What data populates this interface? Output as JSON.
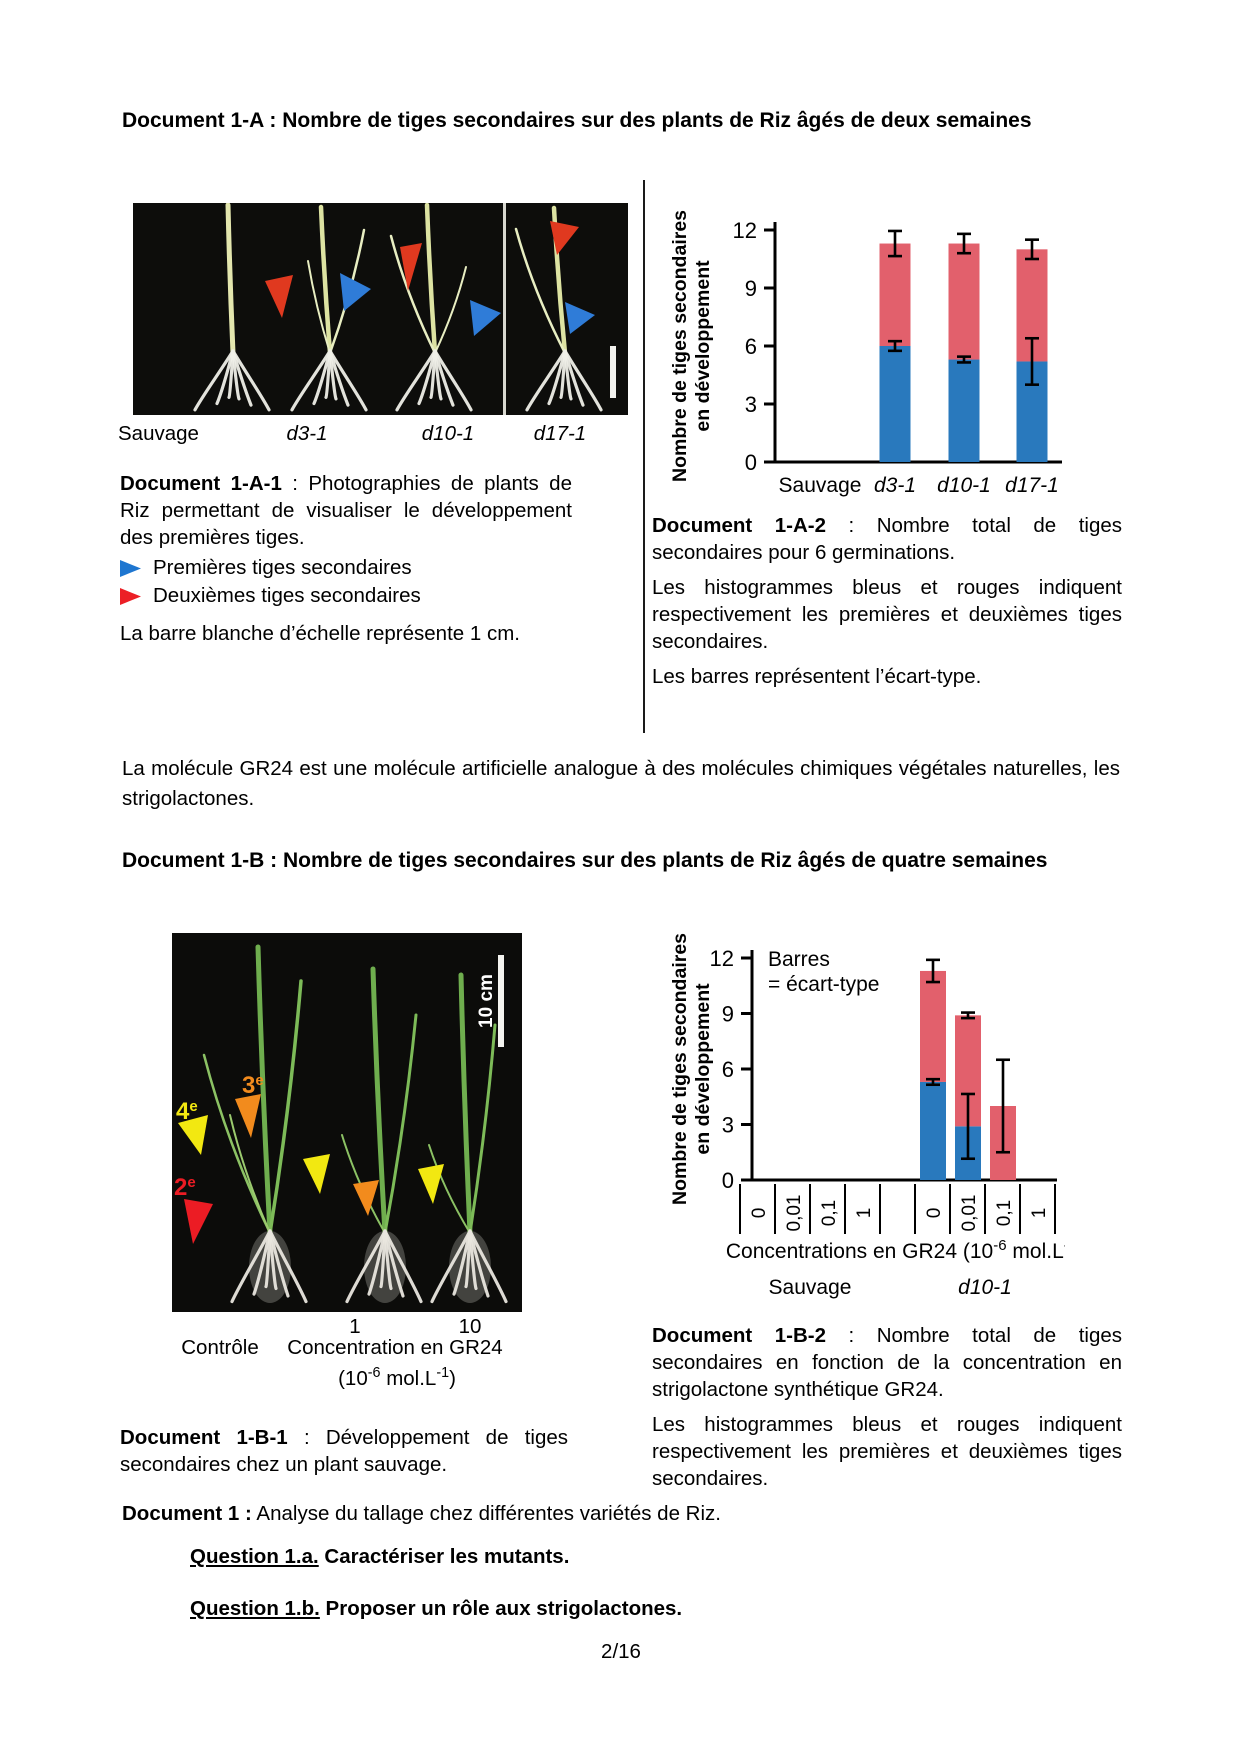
{
  "page": {
    "footer": "2/16"
  },
  "section_a": {
    "title": "Document 1-A : Nombre de tiges secondaires sur des plants de Riz âgés de deux semaines",
    "photo": {
      "labels": [
        "Sauvage",
        "d3-1",
        "d10-1",
        "d17-1"
      ],
      "arrow_colors": {
        "first_blue": "#2F7CD8",
        "second_red": "#E0391F"
      }
    },
    "caption1": {
      "bold": "Document 1-A-1",
      "text": " : Photographies de plants de Riz permettant de visualiser le développement des premières tiges."
    },
    "legend": [
      {
        "color": "#1E76D0",
        "label": "Premières tiges secondaires"
      },
      {
        "color": "#EC1F26",
        "label": "Deuxièmes tiges secondaires"
      }
    ],
    "scale_note": "La barre blanche d’échelle représente 1 cm.",
    "caption2": {
      "bold": "Document 1-A-2",
      "text": " : Nombre total de tiges secondaires pour 6 germinations.",
      "para2": "Les histogrammes bleus et rouges indiquent respectivement les premières et deuxièmes tiges secondaires.",
      "para3": "Les barres représentent l’écart-type."
    }
  },
  "between_paragraph": "La molécule GR24 est une molécule artificielle analogue à des molécules chimiques végétales naturelles, les strigolactones.",
  "section_b": {
    "title": "Document 1-B : Nombre de tiges secondaires sur des plants de Riz âgés de quatre semaines",
    "photo": {
      "arrow_labels": [
        {
          "num": "4",
          "sup": "e",
          "color": "#F2E811"
        },
        {
          "num": "3",
          "sup": "e",
          "color": "#F28B1D"
        },
        {
          "num": "2",
          "sup": "e",
          "color": "#EC1C24"
        }
      ],
      "scale_label": "10 cm",
      "tick_left": "1",
      "tick_right": "10",
      "caption_control": "Contrôle",
      "caption_conc": "Concentration en GR24",
      "unit_parts": [
        "(10",
        "-6",
        " mol.L",
        "-1",
        ")"
      ]
    },
    "caption1": {
      "bold": "Document 1-B-1",
      "text": " : Développement de tiges secondaires chez un plant sauvage."
    },
    "caption2": {
      "bold": "Document 1-B-2",
      "text": " : Nombre total de tiges secondaires en fonction de la concentration en strigolactone synthétique GR24.",
      "para2": "Les histogrammes bleus et rouges indiquent respectivement les premières et deuxièmes tiges secondaires."
    }
  },
  "doc1_line": {
    "bold": "Document 1 :",
    "text": " Analyse du tallage chez différentes variétés de Riz."
  },
  "questions": [
    {
      "label": "Question 1.a.",
      "text": " Caractériser les mutants."
    },
    {
      "label": "Question 1.b.",
      "text": " Proposer un rôle aux strigolactones."
    }
  ],
  "chart_data": [
    {
      "type": "bar",
      "stacked": true,
      "ylabel_lines": [
        "Nombre de tiges secondaires",
        "en développement"
      ],
      "ylim": [
        0,
        12
      ],
      "yticks": [
        0,
        3,
        6,
        9,
        12
      ],
      "grid": false,
      "categories": [
        {
          "label": "Sauvage",
          "italic": false
        },
        {
          "label": "d3-1",
          "italic": true
        },
        {
          "label": "d10-1",
          "italic": true
        },
        {
          "label": "d17-1",
          "italic": true
        }
      ],
      "series": [
        {
          "name": "Premières tiges secondaires",
          "color": "#2979BD",
          "values": [
            0,
            6.0,
            5.3,
            5.2
          ],
          "errors": [
            0,
            0.25,
            0.15,
            1.2
          ]
        },
        {
          "name": "Deuxièmes tiges secondaires",
          "color": "#E2606C",
          "values": [
            0,
            5.3,
            6.0,
            5.8
          ]
        }
      ],
      "total_errors": [
        0,
        0.65,
        0.5,
        0.5
      ]
    },
    {
      "type": "bar",
      "stacked": true,
      "annotation_lines": [
        "Barres",
        "= écart-type"
      ],
      "ylabel_lines": [
        "Nombre de tiges secondaires",
        "en développement"
      ],
      "ylim": [
        0,
        12
      ],
      "yticks": [
        0,
        3,
        6,
        9,
        12
      ],
      "grid": false,
      "categories": [
        "0",
        "0,01",
        "0,1",
        "1",
        "0",
        "0,01",
        "0,1",
        "1"
      ],
      "groups": [
        {
          "label": "Sauvage",
          "italic": false
        },
        {
          "label": "d10-1",
          "italic": true
        }
      ],
      "xlabel_parts": [
        "Concentrations en GR24 (10",
        "-6",
        " mol.L",
        "-1",
        ")"
      ],
      "series": [
        {
          "name": "Premières tiges secondaires",
          "color": "#2979BD",
          "values": [
            0,
            0,
            0,
            0,
            5.3,
            2.9,
            0,
            0
          ],
          "errors": [
            0,
            0,
            0,
            0,
            0.15,
            1.75,
            0,
            0
          ]
        },
        {
          "name": "Deuxièmes tiges secondaires",
          "color": "#E2606C",
          "values": [
            0,
            0,
            0,
            0,
            6.0,
            6.0,
            4.0,
            0
          ]
        }
      ],
      "total_errors": [
        0,
        0,
        0,
        0,
        0.6,
        0.15,
        2.5,
        0
      ]
    }
  ]
}
